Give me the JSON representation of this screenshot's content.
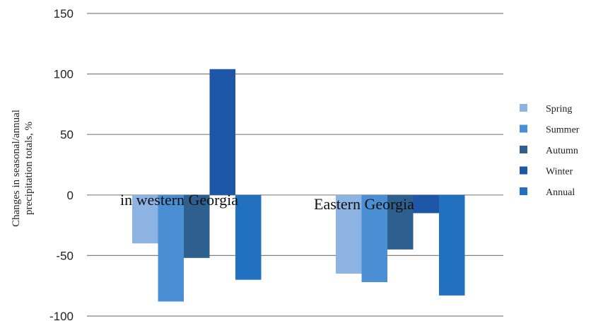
{
  "chart_data": {
    "type": "bar",
    "title": "",
    "xlabel": "",
    "ylabel_lines": [
      "Changes in  seasonal/annual",
      "precipitation totals,  %"
    ],
    "ylim": [
      -100,
      150
    ],
    "yticks": [
      150,
      100,
      50,
      0,
      -50,
      -100
    ],
    "grid": true,
    "legend_position": "right",
    "categories": [
      "in western Georgia",
      "Eastern Georgia"
    ],
    "series": [
      {
        "name": "Spring",
        "color": "#8db3e2",
        "values": [
          -40,
          -65
        ]
      },
      {
        "name": "Summer",
        "color": "#4a8fd4",
        "values": [
          -88,
          -72
        ]
      },
      {
        "name": "Autumn",
        "color": "#2d5f8f",
        "values": [
          -52,
          -45
        ]
      },
      {
        "name": "Winter",
        "color": "#1f57a8",
        "values": [
          104,
          -15
        ]
      },
      {
        "name": "Annual",
        "color": "#2270c0",
        "values": [
          -70,
          -83
        ]
      }
    ]
  }
}
